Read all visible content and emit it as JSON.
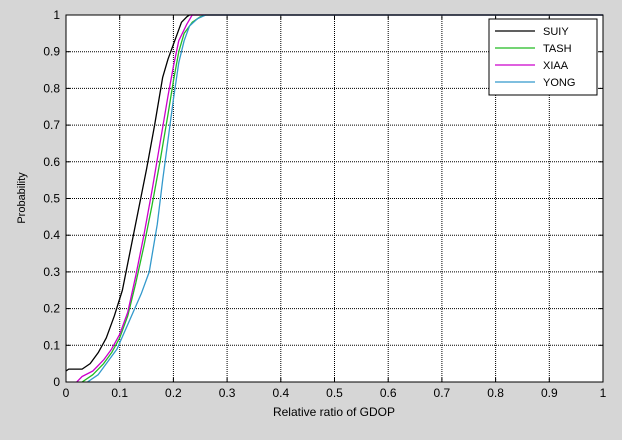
{
  "chart_data": {
    "type": "line",
    "xlabel": "Relative ratio of GDOP",
    "ylabel": "Probability",
    "xlim": [
      0,
      1
    ],
    "ylim": [
      0,
      1
    ],
    "xticks": [
      0,
      0.1,
      0.2,
      0.3,
      0.4,
      0.5,
      0.6,
      0.7,
      0.8,
      0.9,
      1
    ],
    "yticks": [
      0,
      0.1,
      0.2,
      0.3,
      0.4,
      0.5,
      0.6,
      0.7,
      0.8,
      0.9,
      1
    ],
    "xtick_labels": [
      "0",
      "0.1",
      "0.2",
      "0.3",
      "0.4",
      "0.5",
      "0.6",
      "0.7",
      "0.8",
      "0.9",
      "1"
    ],
    "ytick_labels": [
      "0",
      "0.1",
      "0.2",
      "0.3",
      "0.4",
      "0.5",
      "0.6",
      "0.7",
      "0.8",
      "0.9",
      "1"
    ],
    "grid": true,
    "legend_position": "top-right",
    "series": [
      {
        "name": "SUIY",
        "color": "#000000",
        "x": [
          0,
          0.005,
          0.03,
          0.045,
          0.06,
          0.075,
          0.09,
          0.105,
          0.12,
          0.135,
          0.15,
          0.165,
          0.18,
          0.19,
          0.2,
          0.21,
          0.215,
          0.225,
          0.23,
          1
        ],
        "y": [
          0.03,
          0.035,
          0.035,
          0.05,
          0.08,
          0.12,
          0.18,
          0.25,
          0.36,
          0.47,
          0.58,
          0.7,
          0.83,
          0.88,
          0.92,
          0.96,
          0.98,
          0.995,
          1,
          1
        ]
      },
      {
        "name": "TASH",
        "color": "#22bb22",
        "x": [
          0.03,
          0.05,
          0.07,
          0.085,
          0.1,
          0.115,
          0.13,
          0.145,
          0.16,
          0.175,
          0.19,
          0.2,
          0.21,
          0.22,
          0.235,
          0.25,
          0.26,
          1
        ],
        "y": [
          0,
          0.02,
          0.05,
          0.08,
          0.12,
          0.18,
          0.27,
          0.37,
          0.48,
          0.6,
          0.73,
          0.82,
          0.9,
          0.95,
          0.98,
          0.995,
          1,
          1
        ]
      },
      {
        "name": "XIAA",
        "color": "#cc00cc",
        "x": [
          0.02,
          0.03,
          0.05,
          0.07,
          0.085,
          0.1,
          0.115,
          0.13,
          0.145,
          0.16,
          0.175,
          0.19,
          0.2,
          0.21,
          0.225,
          0.235,
          1
        ],
        "y": [
          0,
          0.015,
          0.03,
          0.06,
          0.09,
          0.13,
          0.19,
          0.29,
          0.4,
          0.52,
          0.65,
          0.78,
          0.86,
          0.93,
          0.975,
          1,
          1
        ]
      },
      {
        "name": "YONG",
        "color": "#3399cc",
        "x": [
          0.04,
          0.06,
          0.08,
          0.095,
          0.11,
          0.125,
          0.14,
          0.155,
          0.17,
          0.18,
          0.19,
          0.2,
          0.21,
          0.22,
          0.23,
          0.245,
          0.26,
          1
        ],
        "y": [
          0,
          0.02,
          0.06,
          0.09,
          0.14,
          0.19,
          0.24,
          0.3,
          0.43,
          0.55,
          0.66,
          0.77,
          0.87,
          0.93,
          0.97,
          0.99,
          1,
          1
        ]
      }
    ]
  }
}
